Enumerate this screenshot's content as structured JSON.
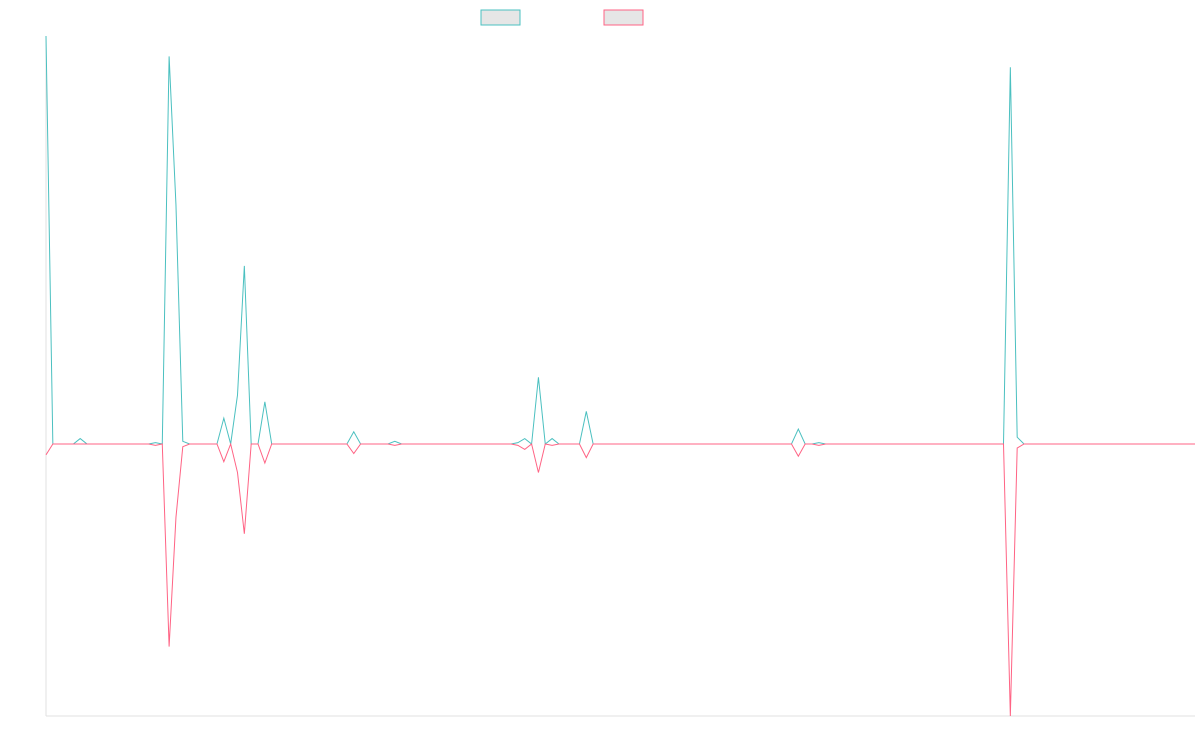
{
  "chart_data": {
    "type": "line",
    "ylim": [
      -2,
      3
    ],
    "legend": "top",
    "series": [
      {
        "color": "#4bc0c0",
        "values": [
          3.0,
          0,
          0,
          0,
          0,
          0.04,
          0,
          0,
          0,
          0,
          0,
          0,
          0,
          0,
          0,
          0,
          0.01,
          0,
          2.85,
          1.76,
          0.02,
          0,
          0,
          0,
          0,
          0,
          0.19,
          0,
          0.36,
          1.31,
          0,
          0,
          0.31,
          0,
          0,
          0,
          0,
          0,
          0,
          0,
          0,
          0,
          0,
          0,
          0,
          0.09,
          0,
          0,
          0,
          0,
          0,
          0.02,
          0,
          0,
          0,
          0,
          0,
          0,
          0,
          0,
          0,
          0,
          0,
          0,
          0,
          0,
          0,
          0,
          0,
          0.01,
          0.04,
          0,
          0.49,
          0,
          0.04,
          0,
          0,
          0,
          0,
          0.24,
          0,
          0,
          0,
          0,
          0,
          0,
          0,
          0,
          0,
          0,
          0,
          0,
          0,
          0,
          0,
          0,
          0,
          0,
          0,
          0,
          0,
          0,
          0,
          0,
          0,
          0,
          0,
          0,
          0,
          0,
          0.11,
          0,
          0,
          0.01,
          0,
          0,
          0,
          0,
          0,
          0,
          0,
          0,
          0,
          0,
          0,
          0,
          0,
          0,
          0,
          0,
          0,
          0,
          0,
          0,
          0,
          0,
          0,
          0,
          0,
          0,
          0,
          2.77,
          0.05,
          0,
          0,
          0,
          0,
          0,
          0,
          0,
          0,
          0,
          0,
          0,
          0,
          0,
          0,
          0,
          0,
          0,
          0,
          0,
          0,
          0,
          0,
          0,
          0,
          0,
          0
        ]
      },
      {
        "color": "#ff6384",
        "values": [
          -0.08,
          0,
          0,
          0,
          0,
          0,
          0,
          0,
          0,
          0,
          0,
          0,
          0,
          0,
          0,
          0,
          -0.01,
          0,
          -1.49,
          -0.54,
          -0.02,
          0,
          0,
          0,
          0,
          0,
          -0.13,
          0,
          -0.21,
          -0.66,
          0,
          0,
          -0.14,
          0,
          0,
          0,
          0,
          0,
          0,
          0,
          0,
          0,
          0,
          0,
          0,
          -0.07,
          0,
          0,
          0,
          0,
          0,
          -0.01,
          0,
          0,
          0,
          0,
          0,
          0,
          0,
          0,
          0,
          0,
          0,
          0,
          0,
          0,
          0,
          0,
          0,
          -0.01,
          -0.04,
          0,
          -0.21,
          0,
          -0.01,
          0,
          0,
          0,
          0,
          -0.1,
          0,
          0,
          0,
          0,
          0,
          0,
          0,
          0,
          0,
          0,
          0,
          0,
          0,
          0,
          0,
          0,
          0,
          0,
          0,
          0,
          0,
          0,
          0,
          0,
          0,
          0,
          0,
          0,
          0,
          0,
          -0.09,
          0,
          0,
          -0.01,
          0,
          0,
          0,
          0,
          0,
          0,
          0,
          0,
          0,
          0,
          0,
          0,
          0,
          0,
          0,
          0,
          0,
          0,
          0,
          0,
          0,
          0,
          0,
          0,
          0,
          0,
          0,
          -2.0,
          -0.03,
          0,
          0,
          0,
          0,
          0,
          0,
          0,
          0,
          0,
          0,
          0,
          0,
          0,
          0,
          0,
          0,
          0,
          0,
          0,
          0,
          0,
          0,
          0,
          0,
          0,
          0
        ]
      }
    ]
  }
}
